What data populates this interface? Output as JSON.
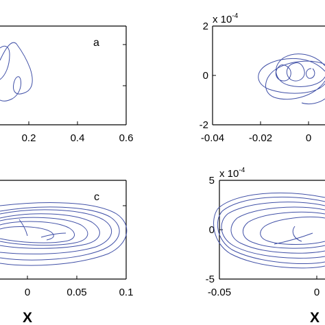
{
  "chart_data": [
    {
      "type": "line",
      "panel_label": "a",
      "xlim": [
        0,
        0.6
      ],
      "ylim": [
        -1,
        1
      ],
      "x_ticks": [
        "0.2",
        "0.4",
        "0.6"
      ],
      "y_ticks": [],
      "y_exponent": "",
      "xlabel": "",
      "series_color": "#3f4fa6",
      "series": [
        {
          "x": [
            0.0,
            0.06,
            0.13,
            0.18,
            0.22,
            0.22,
            0.2,
            0.15,
            0.1,
            0.06,
            0.03,
            0.0
          ],
          "y": [
            0.55,
            0.62,
            0.5,
            0.35,
            0.1,
            -0.15,
            -0.22,
            -0.15,
            -0.08,
            -0.2,
            -0.3,
            -0.25
          ]
        },
        {
          "x": [
            0.08,
            0.1,
            0.12,
            0.11,
            0.09,
            0.08
          ],
          "y": [
            -0.05,
            0.05,
            -0.05,
            -0.2,
            -0.18,
            -0.05
          ]
        }
      ]
    },
    {
      "type": "line",
      "panel_label": "",
      "xlim": [
        -0.04,
        0.005
      ],
      "ylim": [
        -2,
        2
      ],
      "x_ticks": [
        "-0.04",
        "-0.02",
        "0"
      ],
      "y_ticks": [
        "2",
        "0",
        "-2"
      ],
      "y_exponent": "x 10-4",
      "xlabel": "",
      "series_color": "#3f4fa6",
      "series": [
        {
          "x": [
            -0.002,
            -0.012,
            -0.022,
            -0.018,
            -0.005,
            0.001,
            -0.008,
            -0.02,
            -0.014,
            -0.004,
            -0.002
          ],
          "y": [
            0.6,
            0.8,
            0.5,
            -0.4,
            -0.6,
            0.1,
            0.9,
            0.2,
            -0.8,
            -0.4,
            0.6
          ]
        }
      ]
    },
    {
      "type": "line",
      "panel_label": "c",
      "xlim": [
        -0.1,
        0.1
      ],
      "ylim": [
        -1,
        1
      ],
      "x_ticks": [
        "0",
        "0.05",
        "0.1"
      ],
      "y_ticks": [],
      "y_exponent": "",
      "xlabel": "X",
      "series_color": "#3f4fa6",
      "series": [
        {
          "x": [
            -0.02,
            0.04,
            0.085,
            0.07,
            0.0,
            -0.06,
            -0.1
          ],
          "y": [
            0.45,
            0.42,
            0.05,
            -0.4,
            -0.55,
            -0.55,
            -0.45
          ]
        }
      ]
    },
    {
      "type": "line",
      "panel_label": "",
      "xlim": [
        -0.05,
        0.005
      ],
      "ylim": [
        -5,
        5
      ],
      "x_ticks": [
        "-0.05",
        "0"
      ],
      "y_ticks": [
        "5",
        "0",
        "-5"
      ],
      "y_exponent": "x 10-4",
      "xlabel": "X",
      "series_color": "#3f4fa6",
      "series": [
        {
          "x": [
            -0.045,
            -0.03,
            -0.01,
            0.003,
            -0.01,
            -0.03,
            -0.045
          ],
          "y": [
            0.0,
            2.5,
            3.0,
            0.0,
            -3.0,
            -2.5,
            0.0
          ]
        }
      ]
    }
  ],
  "labels": {
    "exp_base": "x 10",
    "exp_power": "-4",
    "panel_a": "a",
    "panel_c": "c",
    "x_axis": "X"
  }
}
